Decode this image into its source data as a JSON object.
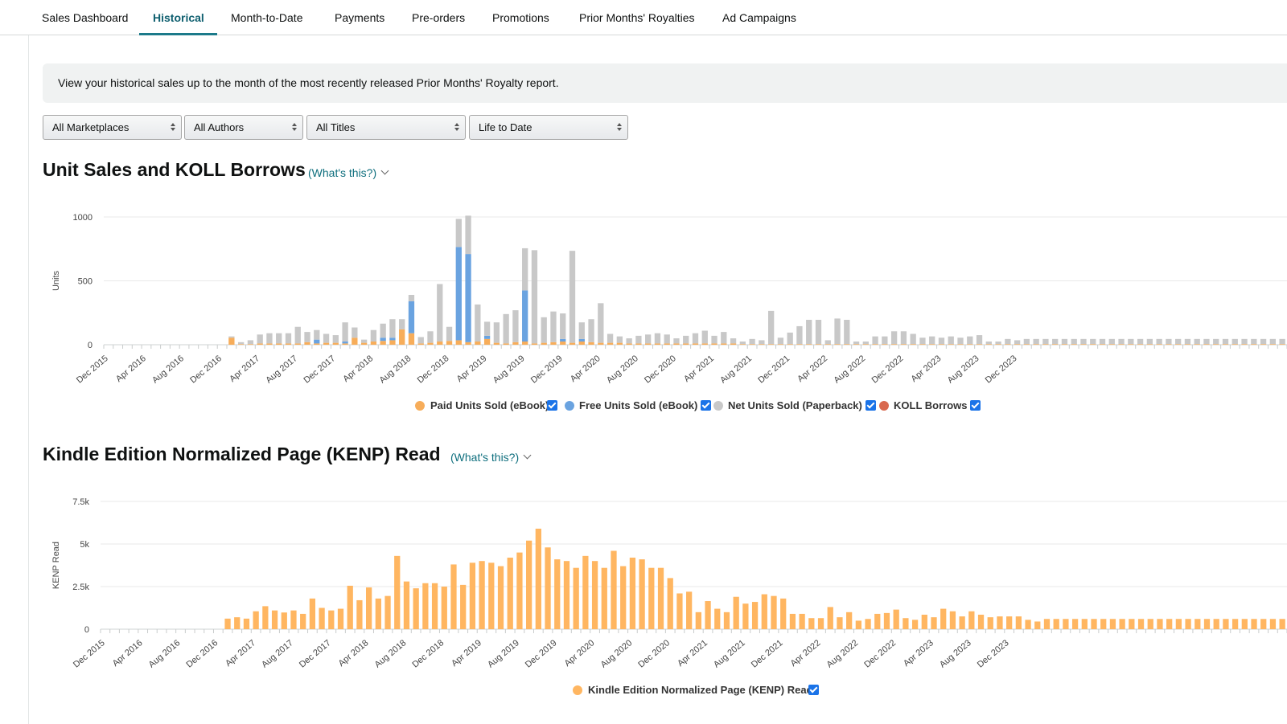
{
  "tabs": [
    {
      "label": "Sales Dashboard",
      "active": false
    },
    {
      "label": "Historical",
      "active": true
    },
    {
      "label": "Month-to-Date",
      "active": false
    },
    {
      "label": "Payments",
      "active": false
    },
    {
      "label": "Pre-orders",
      "active": false
    },
    {
      "label": "Promotions",
      "active": false
    },
    {
      "label": "Prior Months' Royalties",
      "active": false
    },
    {
      "label": "Ad Campaigns",
      "active": false
    }
  ],
  "banner": {
    "text": "View your historical sales up to the month of the most recently released Prior Months' Royalty report."
  },
  "filters": {
    "marketplace": "All Marketplaces",
    "author": "All Authors",
    "title": "All Titles",
    "period": "Life to Date"
  },
  "units_section": {
    "title": "Unit Sales and KOLL Borrows",
    "whats_this": "(What's this?)"
  },
  "kenp_section": {
    "title": "Kindle Edition Normalized Page (KENP) Read",
    "whats_this": "(What's this?)"
  },
  "colors": {
    "paid": "#f7ad5a",
    "free": "#6aa3e0",
    "paperback": "#c8c8c8",
    "koll": "#d9694f",
    "kenp": "#ffb661",
    "accent": "#1c7a8a",
    "link": "#0f6f7e"
  },
  "chart_data": [
    {
      "type": "bar",
      "stacked": true,
      "title": "",
      "xlabel": "",
      "ylabel": "Units",
      "ylim": [
        0,
        1000
      ],
      "yticks": [
        "0",
        "500",
        "1000"
      ],
      "grid": true,
      "legend_position": "bottom",
      "x_tick_labels": [
        "Dec 2015",
        "Apr 2016",
        "Aug 2016",
        "Dec 2016",
        "Apr 2017",
        "Aug 2017",
        "Dec 2017",
        "Apr 2018",
        "Aug 2018",
        "Dec 2018",
        "Apr 2019",
        "Aug 2019",
        "Dec 2019",
        "Apr 2020",
        "Aug 2020",
        "Dec 2020",
        "Apr 2021",
        "Aug 2021",
        "Dec 2021",
        "Apr 2022",
        "Aug 2022",
        "Dec 2022",
        "Apr 2023",
        "Aug 2023",
        "Dec 2023"
      ],
      "series": [
        {
          "name": "Paid Units Sold (eBook)",
          "values": [
            0,
            0,
            0,
            0,
            0,
            0,
            0,
            0,
            0,
            0,
            0,
            0,
            0,
            55,
            5,
            5,
            10,
            10,
            10,
            10,
            10,
            20,
            10,
            15,
            15,
            10,
            55,
            15,
            25,
            30,
            35,
            120,
            90,
            10,
            15,
            25,
            30,
            35,
            20,
            25,
            45,
            15,
            10,
            20,
            25,
            10,
            15,
            20,
            25,
            15,
            25,
            20,
            15,
            15,
            15,
            10,
            10,
            10,
            10,
            10,
            10,
            10,
            10,
            10,
            10,
            10,
            10,
            5,
            5,
            5,
            5,
            5,
            5,
            5,
            5,
            5,
            5,
            5,
            5,
            5,
            5,
            5,
            5,
            5,
            5,
            5,
            5,
            5,
            5,
            5,
            5,
            5,
            5,
            5,
            5,
            5,
            5,
            5,
            5,
            5,
            5,
            5,
            5,
            5,
            5,
            5,
            5,
            5,
            5,
            5,
            5,
            5,
            5,
            5,
            5,
            5,
            5,
            5,
            5,
            5,
            5,
            5,
            5,
            5,
            5
          ]
        },
        {
          "name": "Free Units Sold (eBook)",
          "values": [
            0,
            0,
            0,
            0,
            0,
            0,
            0,
            0,
            0,
            0,
            0,
            0,
            0,
            0,
            0,
            0,
            0,
            0,
            0,
            0,
            0,
            0,
            30,
            0,
            0,
            15,
            0,
            0,
            0,
            25,
            20,
            0,
            250,
            0,
            0,
            0,
            0,
            730,
            690,
            0,
            25,
            0,
            0,
            0,
            400,
            0,
            0,
            0,
            20,
            0,
            20,
            0,
            0,
            0,
            0,
            0,
            0,
            0,
            0,
            0,
            0,
            0,
            0,
            0,
            0,
            0,
            0,
            0,
            0,
            0,
            0,
            0,
            0,
            0,
            0,
            0,
            0,
            0,
            0,
            0,
            0,
            0,
            0,
            0,
            0,
            0,
            0,
            0,
            0,
            0,
            0,
            0,
            0,
            0,
            0,
            0,
            0,
            0,
            0,
            0,
            0,
            0,
            0,
            0,
            0,
            0,
            0,
            0,
            0,
            0,
            0,
            0,
            0,
            0,
            0,
            0,
            0,
            0,
            0,
            0,
            0,
            0,
            0,
            0,
            0,
            0
          ]
        },
        {
          "name": "Net Units Sold (Paperback)",
          "values": [
            0,
            0,
            0,
            0,
            0,
            0,
            0,
            0,
            0,
            0,
            0,
            0,
            0,
            10,
            15,
            30,
            70,
            80,
            80,
            80,
            130,
            80,
            75,
            70,
            60,
            150,
            80,
            25,
            90,
            110,
            145,
            80,
            50,
            50,
            90,
            450,
            110,
            220,
            300,
            290,
            110,
            160,
            230,
            250,
            330,
            730,
            200,
            240,
            200,
            720,
            130,
            180,
            310,
            70,
            50,
            40,
            60,
            70,
            80,
            70,
            40,
            60,
            80,
            100,
            60,
            90,
            40,
            20,
            40,
            30,
            260,
            50,
            90,
            140,
            190,
            190,
            30,
            200,
            190,
            20,
            20,
            60,
            60,
            100,
            100,
            80,
            50,
            60,
            50,
            60,
            50,
            60,
            70,
            20,
            20,
            40,
            30,
            40,
            40,
            40,
            40,
            40,
            40,
            40,
            40,
            40,
            40,
            40,
            40,
            40,
            40,
            40,
            40,
            40,
            40,
            40,
            40,
            40,
            40,
            40,
            40,
            40,
            40,
            40,
            40,
            40
          ]
        },
        {
          "name": "KOLL Borrows",
          "values": [
            0,
            0,
            0,
            0,
            0,
            0,
            0,
            0,
            0,
            0,
            0,
            0,
            0,
            0,
            0,
            0,
            0,
            0,
            0,
            0,
            0,
            0,
            0,
            0,
            0,
            0,
            0,
            0,
            0,
            0,
            0,
            0,
            0,
            0,
            0,
            0,
            0,
            0,
            0,
            0,
            0,
            0,
            0,
            0,
            0,
            0,
            0,
            0,
            0,
            0,
            0,
            0,
            0,
            0,
            0,
            0,
            0,
            0,
            0,
            0,
            0,
            0,
            0,
            0,
            0,
            0,
            0,
            0,
            0,
            0,
            0,
            0,
            0,
            0,
            0,
            0,
            0,
            0,
            0,
            0,
            0,
            0,
            0,
            0,
            0,
            0,
            0,
            0,
            0,
            0,
            0,
            0,
            0,
            0,
            0,
            0,
            0,
            0,
            0,
            0,
            0,
            0,
            0,
            0,
            0,
            0,
            0,
            0,
            0,
            0,
            0,
            0,
            0,
            0,
            0,
            0,
            0,
            0,
            0,
            0,
            0,
            0,
            0,
            0,
            0,
            0
          ]
        }
      ]
    },
    {
      "type": "bar",
      "title": "",
      "xlabel": "",
      "ylabel": "KENP Read",
      "ylim": [
        0,
        7500
      ],
      "yticks": [
        "0",
        "2.5k",
        "5k",
        "7.5k"
      ],
      "grid": true,
      "legend_position": "bottom",
      "x_tick_labels": [
        "Dec 2015",
        "Apr 2016",
        "Aug 2016",
        "Dec 2016",
        "Apr 2017",
        "Aug 2017",
        "Dec 2017",
        "Apr 2018",
        "Aug 2018",
        "Dec 2018",
        "Apr 2019",
        "Aug 2019",
        "Dec 2019",
        "Apr 2020",
        "Aug 2020",
        "Dec 2020",
        "Apr 2021",
        "Aug 2021",
        "Dec 2021",
        "Apr 2022",
        "Aug 2022",
        "Dec 2022",
        "Apr 2023",
        "Aug 2023",
        "Dec 2023"
      ],
      "series": [
        {
          "name": "Kindle Edition Normalized Page (KENP) Read",
          "values": [
            0,
            0,
            0,
            0,
            0,
            0,
            0,
            0,
            0,
            0,
            0,
            0,
            0,
            620,
            700,
            620,
            1050,
            1350,
            1100,
            980,
            1100,
            900,
            1800,
            1250,
            1100,
            1200,
            2550,
            1700,
            2450,
            1800,
            1950,
            4300,
            2800,
            2400,
            2700,
            2700,
            2500,
            3800,
            2600,
            3900,
            4000,
            3900,
            3700,
            4200,
            4500,
            5200,
            5900,
            4800,
            4100,
            4000,
            3600,
            4300,
            4000,
            3600,
            4600,
            3700,
            4200,
            4100,
            3600,
            3600,
            3000,
            2100,
            2200,
            1000,
            1650,
            1200,
            1000,
            1900,
            1500,
            1600,
            2050,
            1950,
            1800,
            900,
            900,
            650,
            650,
            1300,
            700,
            1000,
            500,
            600,
            900,
            950,
            1150,
            650,
            550,
            850,
            700,
            1200,
            1050,
            750,
            1050,
            850,
            700,
            750,
            750,
            750,
            550,
            450,
            600,
            600,
            600,
            600,
            600,
            600,
            600,
            600,
            600,
            600,
            600,
            600,
            600,
            600,
            600,
            600,
            600,
            600,
            600,
            600,
            600,
            600,
            600,
            600,
            600,
            600
          ]
        }
      ]
    }
  ]
}
